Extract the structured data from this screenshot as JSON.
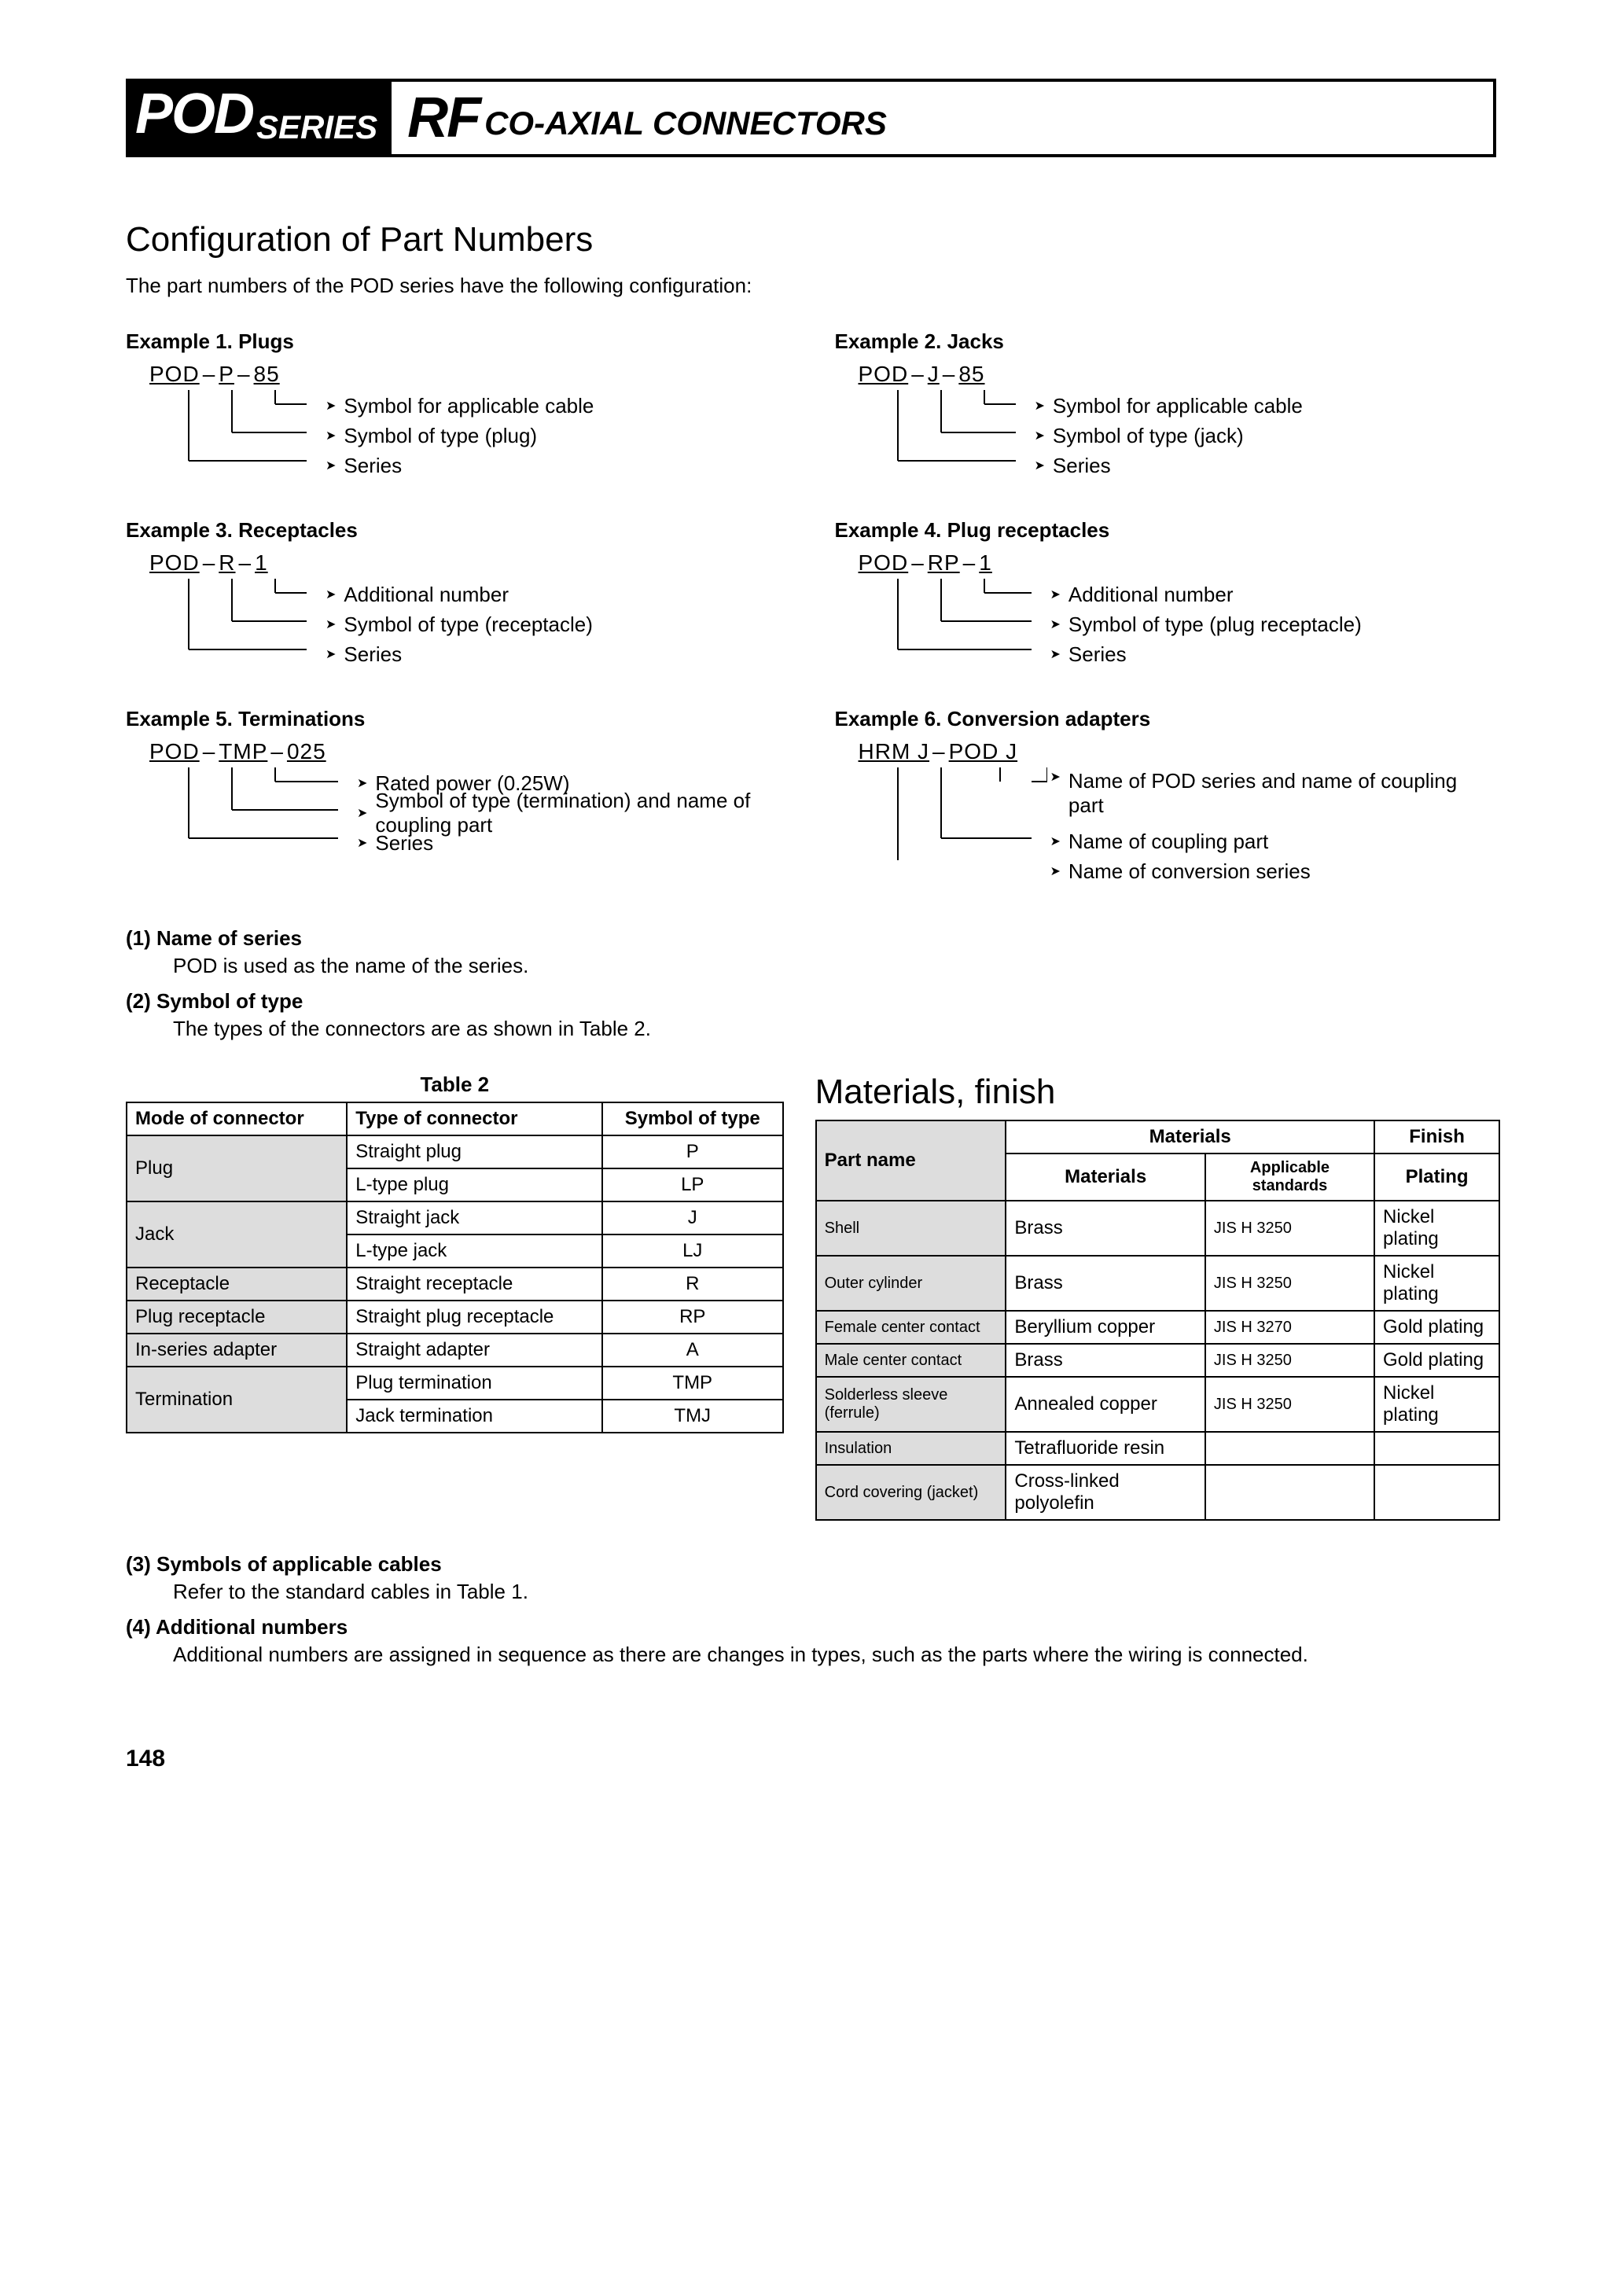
{
  "banner": {
    "pod": "POD",
    "series": "SERIES",
    "rf": "RF",
    "coax": "CO-AXIAL CONNECTORS"
  },
  "config": {
    "title": "Configuration of Part Numbers",
    "intro": "The part numbers of the POD series have the following configuration:"
  },
  "examples": [
    {
      "title": "Example 1. Plugs",
      "parts": [
        "POD",
        "P",
        "85"
      ],
      "labels": [
        "Symbol for applicable cable",
        "Symbol of type (plug)",
        "Series"
      ],
      "offsets": [
        60,
        120,
        200
      ],
      "firstOffset": 200
    },
    {
      "title": "Example 2. Jacks",
      "parts": [
        "POD",
        "J",
        "85"
      ],
      "labels": [
        "Symbol for applicable cable",
        "Symbol of type (jack)",
        "Series"
      ],
      "offsets": [
        60,
        120,
        200
      ],
      "firstOffset": 200
    },
    {
      "title": "Example 3. Receptacles",
      "parts": [
        "POD",
        "R",
        "1"
      ],
      "labels": [
        "Additional number",
        "Symbol of type (receptacle)",
        "Series"
      ],
      "offsets": [
        60,
        120,
        200
      ],
      "firstOffset": 200
    },
    {
      "title": "Example 4. Plug receptacles",
      "parts": [
        "POD",
        "RP",
        "1"
      ],
      "labels": [
        "Additional number",
        "Symbol of type (plug receptacle)",
        "Series"
      ],
      "offsets": [
        60,
        120,
        200
      ],
      "firstOffset": 220
    },
    {
      "title": "Example 5. Terminations",
      "parts": [
        "POD",
        "TMP",
        "025"
      ],
      "labels": [
        "Rated power (0.25W)",
        "Symbol of type (termination) and name of coupling part",
        "Series"
      ],
      "offsets": [
        60,
        140,
        220
      ],
      "firstOffset": 240
    },
    {
      "title": "Example 6. Conversion adapters",
      "parts": [
        "HRM  J",
        "POD  J"
      ],
      "labels": [
        "Name of POD series and name of coupling part",
        "Name of coupling part",
        "Name of conversion series"
      ],
      "offsets": [
        60,
        140,
        220
      ],
      "firstOffset": 220,
      "fourBranch": true
    }
  ],
  "notes": {
    "n1_head": "(1)  Name of series",
    "n1_body": "POD is used as the name of the series.",
    "n2_head": "(2)  Symbol of type",
    "n2_body": "The types of the connectors are as shown in Table 2.",
    "n3_head": "(3)  Symbols of applicable cables",
    "n3_body": "Refer to the standard cables in Table 1.",
    "n4_head": "(4)  Additional numbers",
    "n4_body": "Additional numbers are assigned in sequence as there are changes in types, such as the parts where the wiring is connected."
  },
  "table2": {
    "caption": "Table 2",
    "headers": [
      "Mode of connector",
      "Type of connector",
      "Symbol of type"
    ],
    "rows": [
      {
        "mode": "Plug",
        "span": 2,
        "items": [
          [
            "Straight plug",
            "P"
          ],
          [
            "L-type plug",
            "LP"
          ]
        ]
      },
      {
        "mode": "Jack",
        "span": 2,
        "items": [
          [
            "Straight jack",
            "J"
          ],
          [
            "L-type jack",
            "LJ"
          ]
        ]
      },
      {
        "mode": "Receptacle",
        "span": 1,
        "items": [
          [
            "Straight receptacle",
            "R"
          ]
        ]
      },
      {
        "mode": "Plug receptacle",
        "span": 1,
        "items": [
          [
            "Straight plug receptacle",
            "RP"
          ]
        ]
      },
      {
        "mode": "In-series adapter",
        "span": 1,
        "items": [
          [
            "Straight adapter",
            "A"
          ]
        ]
      },
      {
        "mode": "Termination",
        "span": 2,
        "items": [
          [
            "Plug termination",
            "TMP"
          ],
          [
            "Jack termination",
            "TMJ"
          ]
        ]
      }
    ]
  },
  "materials": {
    "title": "Materials, finish",
    "headers": {
      "partname": "Part name",
      "materials": "Materials",
      "finish": "Finish",
      "mat": "Materials",
      "std": "Applicable standards",
      "plat": "Plating"
    },
    "rows": [
      [
        "Shell",
        "Brass",
        "JIS H 3250",
        "Nickel plating"
      ],
      [
        "Outer cylinder",
        "Brass",
        "JIS H 3250",
        "Nickel plating"
      ],
      [
        "Female center contact",
        "Beryllium copper",
        "JIS H 3270",
        "Gold plating"
      ],
      [
        "Male center contact",
        "Brass",
        "JIS H 3250",
        "Gold plating"
      ],
      [
        "Solderless sleeve (ferrule)",
        "Annealed copper",
        "JIS H 3250",
        "Nickel plating"
      ],
      [
        "Insulation",
        "Tetrafluoride resin",
        "",
        ""
      ],
      [
        "Cord covering (jacket)",
        "Cross-linked polyolefin",
        "",
        ""
      ]
    ]
  },
  "pageNum": "148"
}
